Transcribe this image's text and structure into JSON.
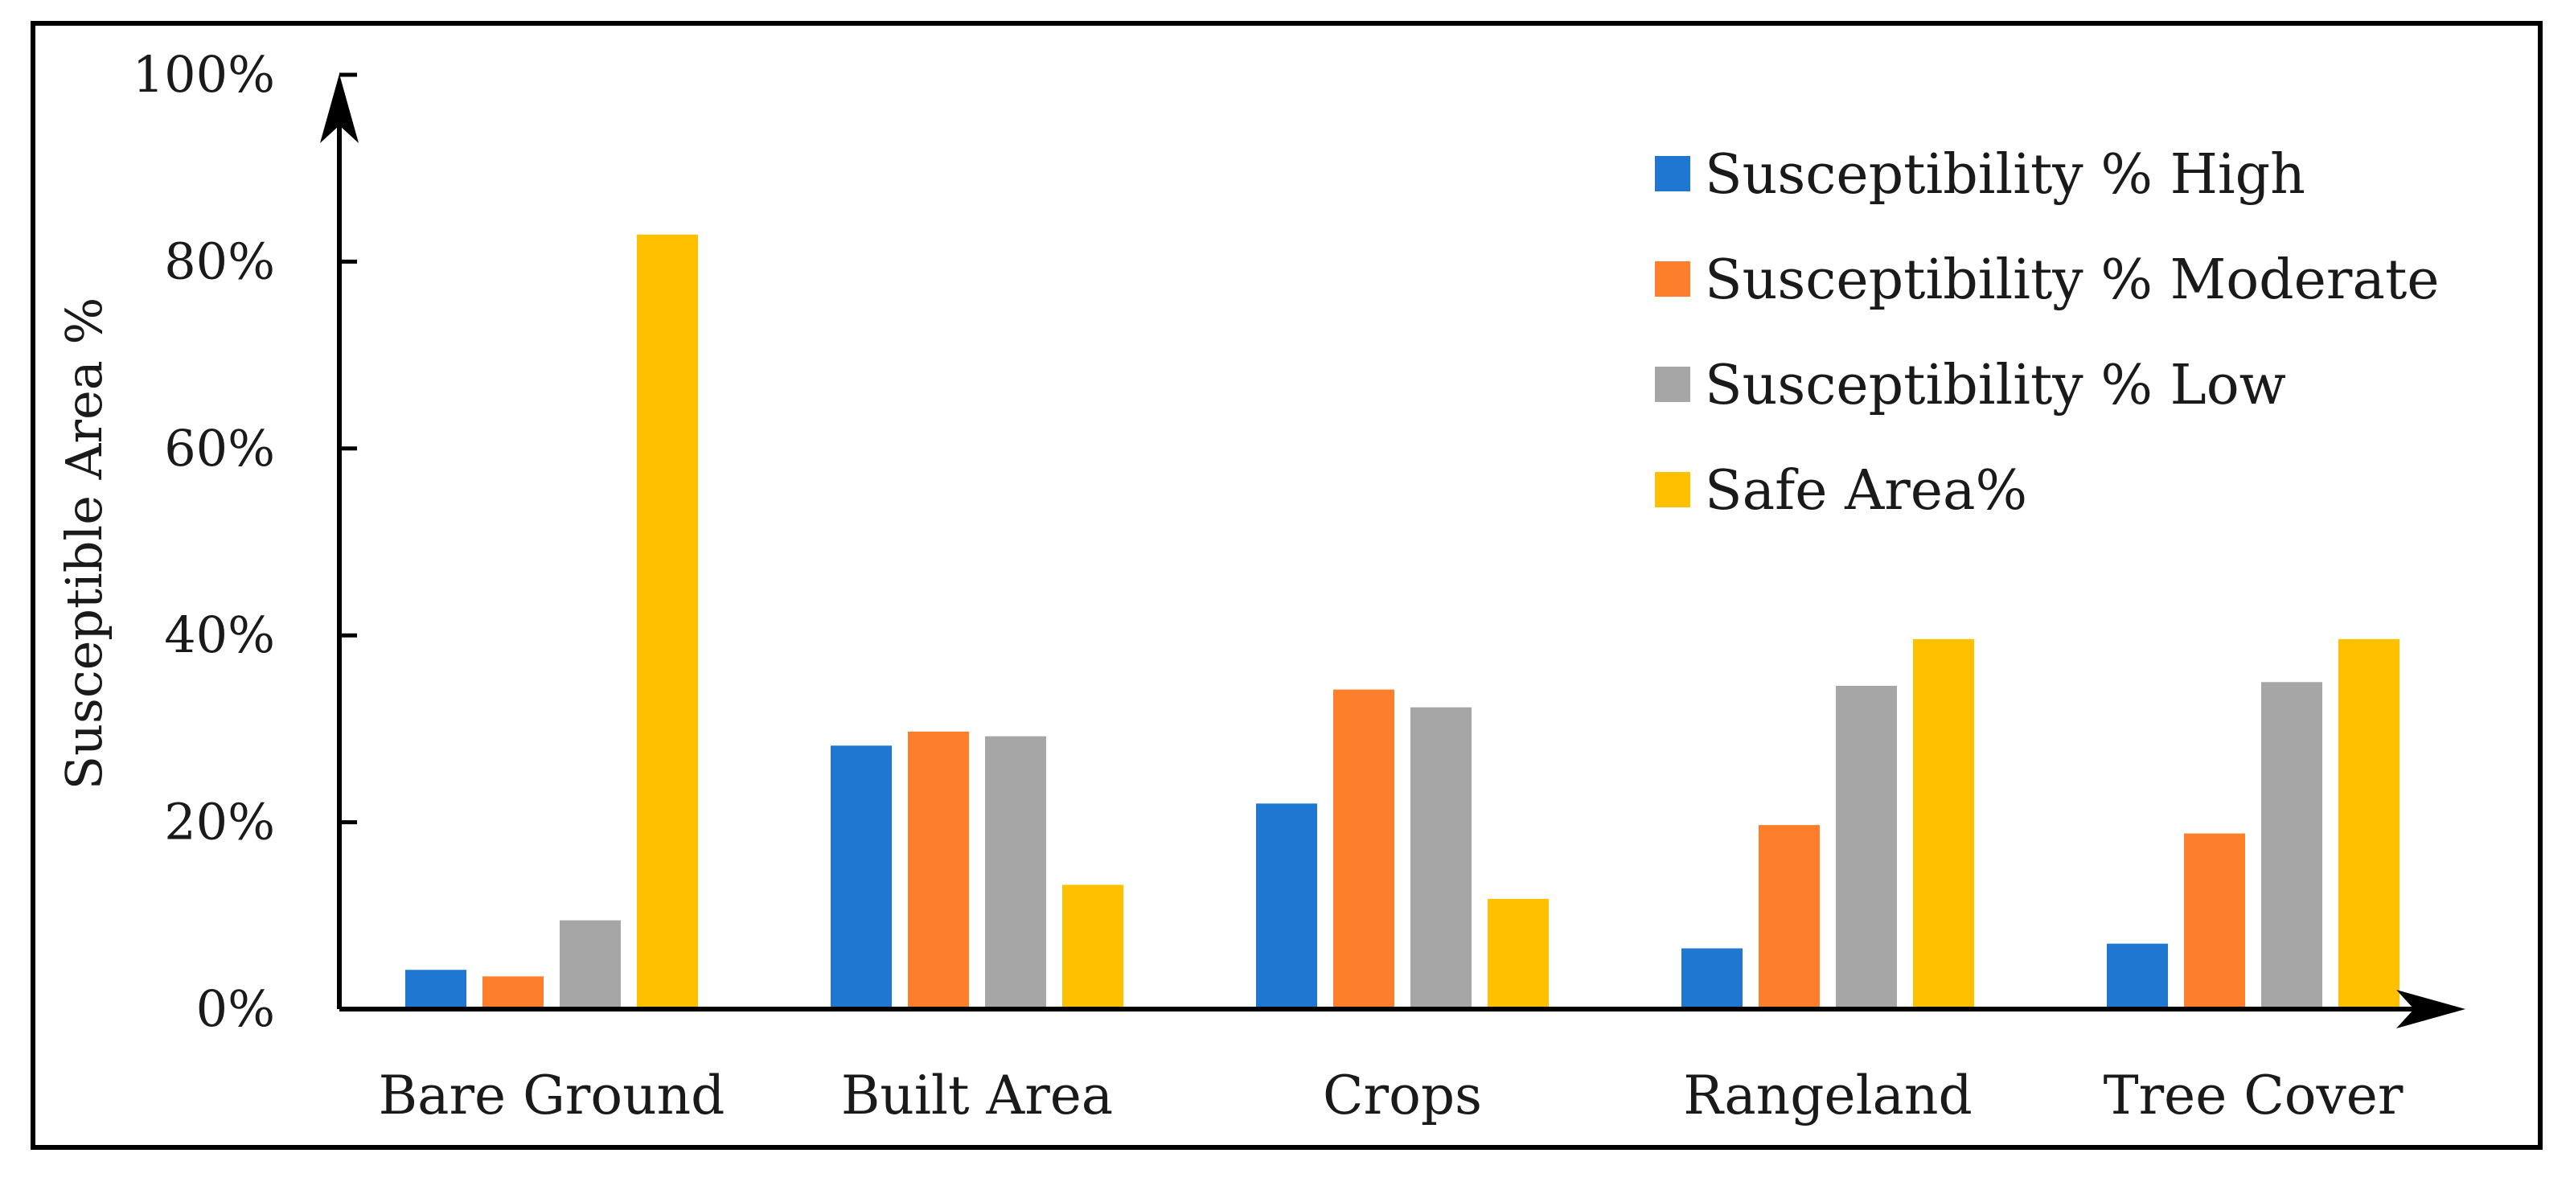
{
  "chart_data": {
    "type": "bar",
    "title": "",
    "xlabel": "",
    "ylabel": "Susceptible Area %",
    "ylim": [
      0,
      100
    ],
    "yticks": [
      0,
      20,
      40,
      60,
      80,
      100
    ],
    "ytick_labels": [
      "0%",
      "20%",
      "40%",
      "60%",
      "80%",
      "100%"
    ],
    "grid": false,
    "legend_position": "top-right",
    "categories": [
      "Bare Ground",
      "Built Area",
      "Crops",
      "Rangeland",
      "Tree Cover"
    ],
    "series": [
      {
        "name": "Susceptibility % High",
        "color": "#1f77d2",
        "values": [
          4.2,
          28.2,
          22.0,
          6.5,
          7.0
        ]
      },
      {
        "name": "Susceptibility % Moderate",
        "color": "#fd7f2c",
        "values": [
          3.5,
          29.7,
          34.2,
          19.7,
          18.8
        ]
      },
      {
        "name": "Susceptibility % Low",
        "color": "#a6a6a6",
        "values": [
          9.5,
          29.2,
          32.3,
          34.6,
          35.0
        ]
      },
      {
        "name": "Safe Area%",
        "color": "#ffc000",
        "values": [
          82.9,
          13.3,
          11.8,
          39.6,
          39.6
        ]
      }
    ]
  }
}
